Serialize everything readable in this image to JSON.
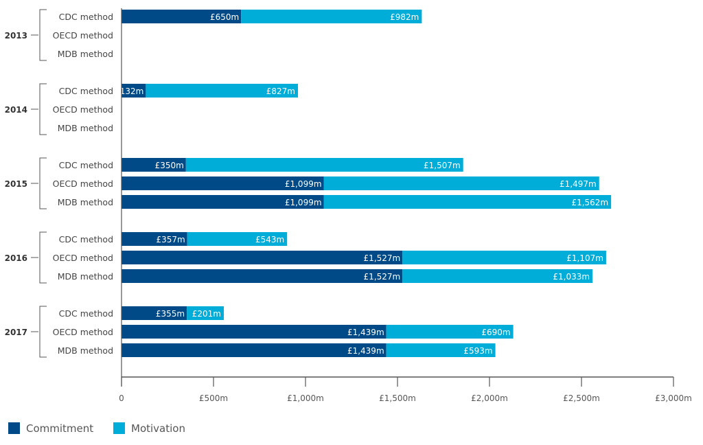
{
  "chart_data": {
    "type": "bar",
    "orientation": "horizontal",
    "stacked": true,
    "title": "",
    "xlabel": "",
    "ylabel": "",
    "xlim": [
      0,
      3000
    ],
    "x_ticks": [
      0,
      500,
      1000,
      1500,
      2000,
      2500,
      3000
    ],
    "x_tick_labels": [
      "0",
      "£500m",
      "£1,000m",
      "£1,500m",
      "£2,000m",
      "£2,500m",
      "£3,000m"
    ],
    "grid": false,
    "legend_position": "bottom-left",
    "groups": [
      {
        "year": "2013",
        "rows": [
          {
            "method": "CDC method",
            "commitment": 650,
            "motivation": 982,
            "commitment_label": "£650m",
            "motivation_label": "£982m"
          },
          {
            "method": "OECD method",
            "commitment": null,
            "motivation": null
          },
          {
            "method": "MDB method",
            "commitment": null,
            "motivation": null
          }
        ]
      },
      {
        "year": "2014",
        "rows": [
          {
            "method": "CDC method",
            "commitment": 132,
            "motivation": 827,
            "commitment_label": "£132m",
            "motivation_label": "£827m"
          },
          {
            "method": "OECD method",
            "commitment": null,
            "motivation": null
          },
          {
            "method": "MDB method",
            "commitment": null,
            "motivation": null
          }
        ]
      },
      {
        "year": "2015",
        "rows": [
          {
            "method": "CDC method",
            "commitment": 350,
            "motivation": 1507,
            "commitment_label": "£350m",
            "motivation_label": "£1,507m"
          },
          {
            "method": "OECD method",
            "commitment": 1099,
            "motivation": 1497,
            "commitment_label": "£1,099m",
            "motivation_label": "£1,497m"
          },
          {
            "method": "MDB method",
            "commitment": 1099,
            "motivation": 1562,
            "commitment_label": "£1,099m",
            "motivation_label": "£1,562m"
          }
        ]
      },
      {
        "year": "2016",
        "rows": [
          {
            "method": "CDC method",
            "commitment": 357,
            "motivation": 543,
            "commitment_label": "£357m",
            "motivation_label": "£543m"
          },
          {
            "method": "OECD method",
            "commitment": 1527,
            "motivation": 1107,
            "commitment_label": "£1,527m",
            "motivation_label": "£1,107m"
          },
          {
            "method": "MDB method",
            "commitment": 1527,
            "motivation": 1033,
            "commitment_label": "£1,527m",
            "motivation_label": "£1,033m"
          }
        ]
      },
      {
        "year": "2017",
        "rows": [
          {
            "method": "CDC method",
            "commitment": 355,
            "motivation": 201,
            "commitment_label": "£355m",
            "motivation_label": "£201m"
          },
          {
            "method": "OECD method",
            "commitment": 1439,
            "motivation": 690,
            "commitment_label": "£1,439m",
            "motivation_label": "£690m"
          },
          {
            "method": "MDB method",
            "commitment": 1439,
            "motivation": 593,
            "commitment_label": "£1,439m",
            "motivation_label": "£593m"
          }
        ]
      }
    ],
    "series": [
      {
        "name": "Commitment",
        "color": "#004b87"
      },
      {
        "name": "Motivation",
        "color": "#00acd8"
      }
    ]
  }
}
